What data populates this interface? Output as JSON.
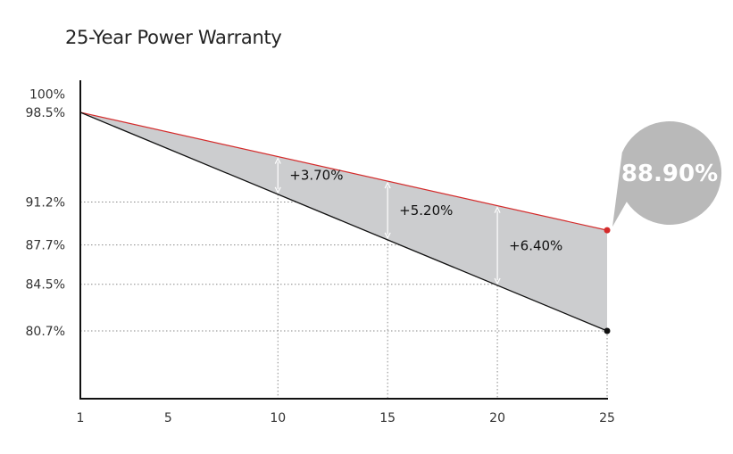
{
  "chart_data": {
    "type": "line",
    "title": "25-Year Power Warranty",
    "xlabel": "",
    "ylabel": "",
    "x_ticks": [
      "1",
      "5",
      "10",
      "15",
      "20",
      "25"
    ],
    "y_ticks": [
      "100%",
      "98.5%",
      "91.2%",
      "87.7%",
      "84.5%",
      "80.7%"
    ],
    "y_tick_values": [
      100,
      98.5,
      91.2,
      87.7,
      84.5,
      80.7
    ],
    "dotted_y_values": [
      91.2,
      87.7,
      84.5,
      80.7
    ],
    "dotted_x_values": [
      10,
      15,
      20,
      25
    ],
    "xlim": [
      1,
      25
    ],
    "series": [
      {
        "points": [
          [
            1,
            98.5
          ],
          [
            25,
            88.9
          ]
        ],
        "color": "#d42b2b"
      },
      {
        "points": [
          [
            1,
            98.5
          ],
          [
            25,
            80.7
          ]
        ],
        "color": "#111111"
      }
    ],
    "gaps": [
      {
        "x": 10,
        "label": "+3.70%"
      },
      {
        "x": 15,
        "label": "+5.20%"
      },
      {
        "x": 20,
        "label": "+6.40%"
      }
    ],
    "callout": {
      "x": 25,
      "y": 88.9,
      "label": "88.90%"
    },
    "fill_color": "#cccdcf"
  }
}
